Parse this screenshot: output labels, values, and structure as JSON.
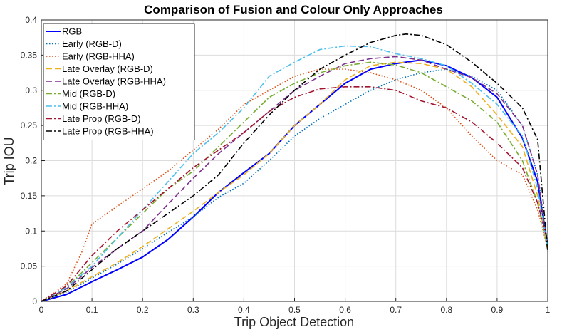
{
  "chart_data": {
    "type": "line",
    "title": "Comparison of Fusion and Colour Only Approaches",
    "xlabel": "Trip Object Detection",
    "ylabel": "Trip IOU",
    "xlim": [
      0,
      1
    ],
    "ylim": [
      0,
      0.4
    ],
    "xticks": [
      "0",
      "0.1",
      "0.2",
      "0.3",
      "0.4",
      "0.5",
      "0.6",
      "0.7",
      "0.8",
      "0.9",
      "1"
    ],
    "yticks": [
      "0",
      "0.05",
      "0.1",
      "0.15",
      "0.2",
      "0.25",
      "0.3",
      "0.35",
      "0.4"
    ],
    "grid": true,
    "legend_position": "top-left",
    "series": [
      {
        "name": "RGB",
        "color": "#0000ff",
        "dash": "solid",
        "x": [
          0,
          0.05,
          0.1,
          0.15,
          0.2,
          0.25,
          0.3,
          0.35,
          0.4,
          0.45,
          0.5,
          0.55,
          0.6,
          0.65,
          0.7,
          0.75,
          0.8,
          0.85,
          0.9,
          0.95,
          0.98,
          1.0
        ],
        "y": [
          0,
          0.01,
          0.028,
          0.045,
          0.063,
          0.088,
          0.12,
          0.155,
          0.183,
          0.21,
          0.25,
          0.28,
          0.31,
          0.33,
          0.338,
          0.343,
          0.335,
          0.318,
          0.29,
          0.232,
          0.17,
          0.075
        ]
      },
      {
        "name": "Early (RGB-D)",
        "color": "#0072bd",
        "dash": "dot",
        "x": [
          0,
          0.05,
          0.1,
          0.15,
          0.2,
          0.25,
          0.3,
          0.35,
          0.4,
          0.45,
          0.5,
          0.55,
          0.6,
          0.65,
          0.7,
          0.75,
          0.8,
          0.85,
          0.9,
          0.95,
          0.98,
          1.0
        ],
        "y": [
          0,
          0.013,
          0.033,
          0.053,
          0.075,
          0.098,
          0.12,
          0.148,
          0.168,
          0.2,
          0.235,
          0.26,
          0.28,
          0.3,
          0.315,
          0.325,
          0.33,
          0.32,
          0.3,
          0.25,
          0.18,
          0.08
        ]
      },
      {
        "name": "Early (RGB-HHA)",
        "color": "#d95319",
        "dash": "dot",
        "x": [
          0,
          0.05,
          0.08,
          0.1,
          0.15,
          0.2,
          0.25,
          0.3,
          0.35,
          0.4,
          0.45,
          0.5,
          0.55,
          0.6,
          0.65,
          0.7,
          0.75,
          0.8,
          0.85,
          0.9,
          0.95,
          0.98,
          1.0
        ],
        "y": [
          0,
          0.025,
          0.07,
          0.11,
          0.135,
          0.16,
          0.185,
          0.215,
          0.245,
          0.28,
          0.3,
          0.32,
          0.33,
          0.33,
          0.325,
          0.315,
          0.3,
          0.275,
          0.235,
          0.2,
          0.18,
          0.13,
          0.075
        ]
      },
      {
        "name": "Late Overlay (RGB-D)",
        "color": "#edb120",
        "dash": "dash",
        "x": [
          0,
          0.05,
          0.1,
          0.15,
          0.2,
          0.25,
          0.3,
          0.35,
          0.4,
          0.45,
          0.5,
          0.55,
          0.6,
          0.65,
          0.7,
          0.75,
          0.8,
          0.85,
          0.9,
          0.95,
          0.98,
          1.0
        ],
        "y": [
          0,
          0.015,
          0.035,
          0.055,
          0.078,
          0.103,
          0.128,
          0.155,
          0.18,
          0.21,
          0.25,
          0.28,
          0.315,
          0.335,
          0.34,
          0.338,
          0.33,
          0.305,
          0.265,
          0.22,
          0.15,
          0.072
        ]
      },
      {
        "name": "Late Overlay (RGB-HHA)",
        "color": "#7e2f8e",
        "dash": "dash",
        "x": [
          0,
          0.05,
          0.1,
          0.15,
          0.2,
          0.25,
          0.3,
          0.35,
          0.4,
          0.45,
          0.5,
          0.55,
          0.6,
          0.65,
          0.7,
          0.75,
          0.8,
          0.85,
          0.9,
          0.95,
          0.98,
          1.0
        ],
        "y": [
          0,
          0.018,
          0.048,
          0.075,
          0.1,
          0.138,
          0.175,
          0.21,
          0.24,
          0.27,
          0.3,
          0.32,
          0.338,
          0.345,
          0.348,
          0.343,
          0.33,
          0.318,
          0.295,
          0.25,
          0.18,
          0.075
        ]
      },
      {
        "name": "Mid (RGB-D)",
        "color": "#77ac30",
        "dash": "dashdot",
        "x": [
          0,
          0.05,
          0.1,
          0.15,
          0.2,
          0.25,
          0.3,
          0.35,
          0.4,
          0.45,
          0.5,
          0.55,
          0.6,
          0.65,
          0.7,
          0.75,
          0.8,
          0.85,
          0.9,
          0.95,
          0.98,
          1.0
        ],
        "y": [
          0,
          0.02,
          0.055,
          0.09,
          0.125,
          0.16,
          0.185,
          0.22,
          0.255,
          0.29,
          0.31,
          0.325,
          0.335,
          0.34,
          0.336,
          0.325,
          0.305,
          0.285,
          0.255,
          0.2,
          0.14,
          0.075
        ]
      },
      {
        "name": "Mid (RGB-HHA)",
        "color": "#4dbeee",
        "dash": "dashdot",
        "x": [
          0,
          0.05,
          0.1,
          0.15,
          0.2,
          0.25,
          0.3,
          0.35,
          0.4,
          0.45,
          0.5,
          0.55,
          0.6,
          0.65,
          0.7,
          0.75,
          0.8,
          0.85,
          0.9,
          0.95,
          0.98,
          1.0
        ],
        "y": [
          0,
          0.02,
          0.05,
          0.09,
          0.13,
          0.17,
          0.21,
          0.24,
          0.275,
          0.32,
          0.34,
          0.358,
          0.363,
          0.362,
          0.352,
          0.345,
          0.335,
          0.31,
          0.28,
          0.235,
          0.16,
          0.075
        ]
      },
      {
        "name": "Late Prop (RGB-D)",
        "color": "#a2142f",
        "dash": "dashdot",
        "x": [
          0,
          0.05,
          0.1,
          0.15,
          0.2,
          0.25,
          0.3,
          0.35,
          0.4,
          0.45,
          0.5,
          0.55,
          0.6,
          0.65,
          0.7,
          0.75,
          0.8,
          0.85,
          0.9,
          0.95,
          0.98,
          1.0
        ],
        "y": [
          0,
          0.022,
          0.065,
          0.1,
          0.13,
          0.16,
          0.19,
          0.215,
          0.24,
          0.27,
          0.29,
          0.302,
          0.305,
          0.305,
          0.3,
          0.285,
          0.275,
          0.255,
          0.225,
          0.19,
          0.14,
          0.085
        ]
      },
      {
        "name": "Late Prop (RGB-HHA)",
        "color": "#000000",
        "dash": "dashdot",
        "x": [
          0,
          0.05,
          0.1,
          0.15,
          0.2,
          0.25,
          0.3,
          0.35,
          0.4,
          0.45,
          0.5,
          0.55,
          0.6,
          0.65,
          0.7,
          0.72,
          0.75,
          0.8,
          0.85,
          0.9,
          0.95,
          0.98,
          1.0
        ],
        "y": [
          0,
          0.015,
          0.045,
          0.075,
          0.1,
          0.125,
          0.15,
          0.18,
          0.225,
          0.265,
          0.3,
          0.33,
          0.35,
          0.368,
          0.378,
          0.38,
          0.378,
          0.365,
          0.34,
          0.31,
          0.275,
          0.23,
          0.07
        ]
      }
    ]
  }
}
